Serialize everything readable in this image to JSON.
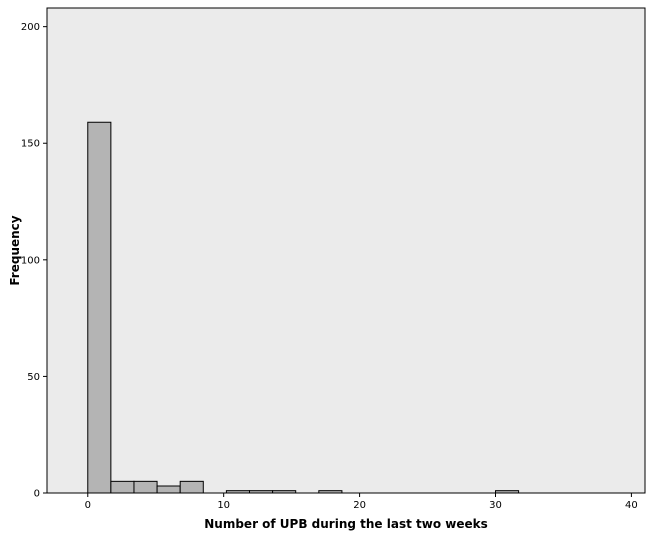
{
  "chart_data": {
    "type": "bar",
    "title": "",
    "xlabel": "Number of UPB during the last two weeks",
    "ylabel": "Frequency",
    "xlim": [
      -3,
      41
    ],
    "ylim": [
      0,
      208
    ],
    "bin_width": 1.7,
    "bins": [
      {
        "start": 0.0,
        "end": 1.7,
        "count": 159
      },
      {
        "start": 1.7,
        "end": 3.4,
        "count": 5
      },
      {
        "start": 3.4,
        "end": 5.1,
        "count": 5
      },
      {
        "start": 5.1,
        "end": 6.8,
        "count": 3
      },
      {
        "start": 6.8,
        "end": 8.5,
        "count": 5
      },
      {
        "start": 10.2,
        "end": 11.9,
        "count": 1
      },
      {
        "start": 11.9,
        "end": 13.6,
        "count": 1
      },
      {
        "start": 13.6,
        "end": 15.3,
        "count": 1
      },
      {
        "start": 17.0,
        "end": 18.7,
        "count": 1
      },
      {
        "start": 30.0,
        "end": 31.7,
        "count": 1
      }
    ],
    "x_ticks": [
      0,
      10,
      20,
      30,
      40
    ],
    "x_tick_labels": [
      "0",
      "10",
      "20",
      "30",
      "40"
    ],
    "y_ticks": [
      0,
      50,
      100,
      150,
      200
    ],
    "y_tick_labels": [
      "0",
      "50",
      "100",
      "150",
      "200"
    ],
    "grid": false,
    "legend": "none",
    "colors": {
      "plot_background": "#ebebeb",
      "bar_fill": "#b4b4b4",
      "bar_stroke": "#000000",
      "axis": "#000000"
    }
  }
}
